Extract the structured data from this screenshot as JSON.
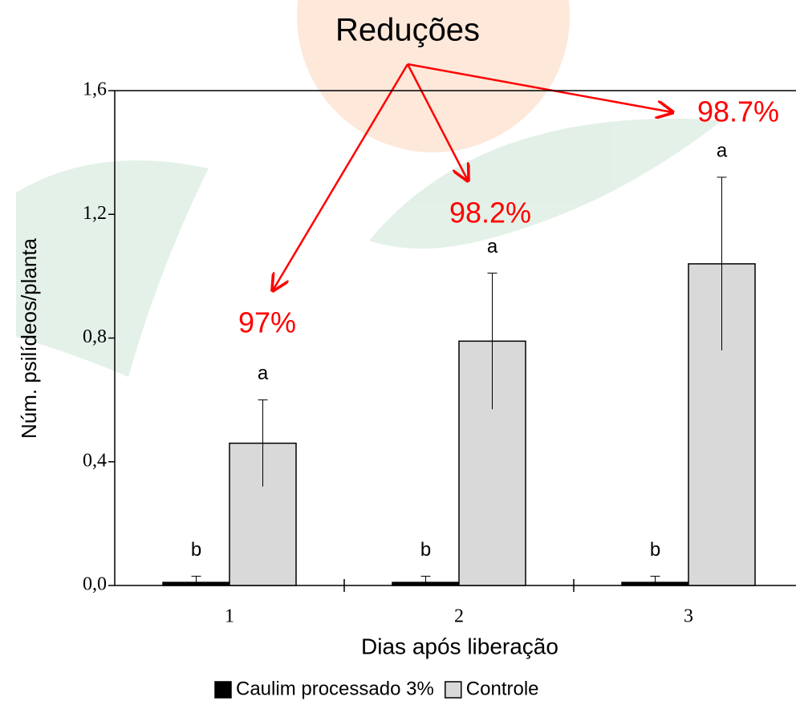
{
  "chart_data": {
    "type": "bar",
    "title": "Reduções",
    "ylabel": "Núm. psilídeos/planta",
    "xlabel": "Dias após liberação",
    "categories": [
      "1",
      "2",
      "3"
    ],
    "series": [
      {
        "name": "Caulim processado 3%",
        "color": "#000000",
        "values": [
          0.01,
          0.01,
          0.01
        ],
        "errors": [
          0.02,
          0.02,
          0.02
        ],
        "letters": [
          "b",
          "b",
          "b"
        ]
      },
      {
        "name": "Controle",
        "color": "#d9d9d9",
        "values": [
          0.46,
          0.79,
          1.04
        ],
        "errors": [
          0.14,
          0.22,
          0.28
        ],
        "letters": [
          "a",
          "a",
          "a"
        ]
      }
    ],
    "annotations": [
      "97%",
      "98.2%",
      "98.7%"
    ],
    "ylim": [
      0,
      1.6
    ],
    "yticks": [
      {
        "value": 0,
        "label": "0,0"
      },
      {
        "value": 0.4,
        "label": "0,4"
      },
      {
        "value": 0.8,
        "label": "0,8"
      },
      {
        "value": 1.2,
        "label": "1,2"
      },
      {
        "value": 1.6,
        "label": "1,6"
      }
    ],
    "legend": "bottom"
  }
}
